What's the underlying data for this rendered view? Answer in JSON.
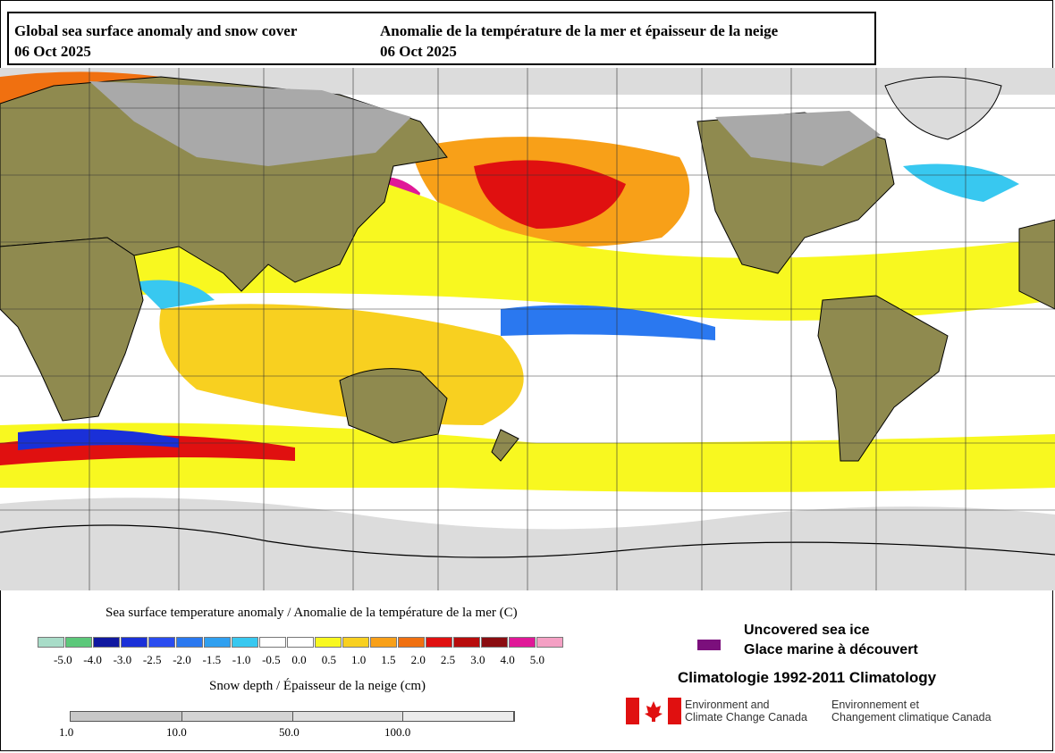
{
  "title": {
    "en": "Global sea surface anomaly and snow cover",
    "fr": "Anomalie de la température de la mer et épaisseur de la neige",
    "date_en": "06 Oct 2025",
    "date_fr": "06 Oct 2025"
  },
  "sst_legend": {
    "title": "Sea surface temperature anomaly / Anomalie de la température de la mer (C)",
    "colors": [
      "#a8dcc8",
      "#5cc87a",
      "#1018a0",
      "#1a30d8",
      "#2a4cf0",
      "#2a78f0",
      "#30a0f0",
      "#38c8f0",
      "#ffffff",
      "#ffffff",
      "#f8f820",
      "#f8d020",
      "#f8a018",
      "#f07010",
      "#e01010",
      "#b80c0c",
      "#8a0c10",
      "#e01898",
      "#f4a0c4"
    ],
    "ticks": [
      "-5.0",
      "-4.0",
      "-3.0",
      "-2.5",
      "-2.0",
      "-1.5",
      "-1.0",
      "-0.5",
      "0.0",
      "0.5",
      "1.0",
      "1.5",
      "2.0",
      "2.5",
      "3.0",
      "4.0",
      "5.0"
    ]
  },
  "snow_legend": {
    "title": "Snow depth / Épaisseur de la neige (cm)",
    "colors": [
      "#c8c8c8",
      "#d4d4d4",
      "#e0e0e0",
      "#ececec"
    ],
    "ticks": [
      "1.0",
      "10.0",
      "50.0",
      "100.0"
    ]
  },
  "sea_ice": {
    "label_en": "Uncovered sea ice",
    "label_fr": "Glace marine à découvert",
    "color": "#7b0f7c"
  },
  "climatology": "Climatologie 1992-2011 Climatology",
  "agency": {
    "en_line1": "Environment and",
    "en_line2": "Climate Change Canada",
    "fr_line1": "Environnement et",
    "fr_line2": "Changement climatique Canada"
  },
  "map_colors": {
    "land": "#8f8a4f",
    "snow": "#a9a9a9",
    "ice": "#dcdcdc",
    "ocean": "#ffffff"
  }
}
